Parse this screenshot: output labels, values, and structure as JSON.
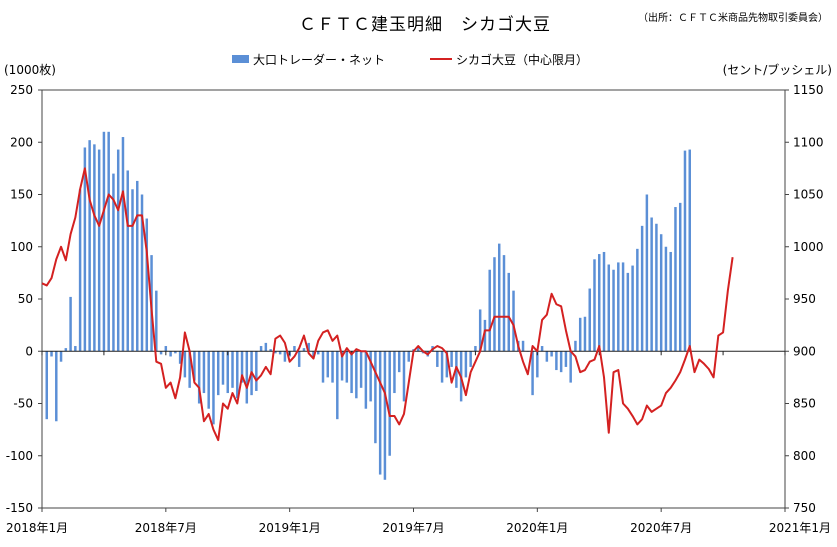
{
  "chart_data": {
    "type": "bar+line",
    "title": "ＣＦＴＣ建玉明細　シカゴ大豆",
    "source": "（出所：ＣＦＴＣ米商品先物取引委員会）",
    "legend": {
      "bar_label": "大口トレーダー・ネット",
      "line_label": "シカゴ大豆（中心限月）",
      "placement": "top-center"
    },
    "left_axis": {
      "label": "(1000枚)",
      "min": -150,
      "max": 250,
      "step": 50,
      "ticks": [
        "250",
        "200",
        "150",
        "100",
        "50",
        "0",
        "-50",
        "-100",
        "-150"
      ]
    },
    "right_axis": {
      "label": "(セント/ブッシェル)",
      "min": 750,
      "max": 1150,
      "step": 50,
      "ticks": [
        "1150",
        "1100",
        "1050",
        "1000",
        "950",
        "900",
        "850",
        "800",
        "750"
      ]
    },
    "x_axis": {
      "start": "2018-01",
      "end": "2021-01",
      "unit": "weeks",
      "total_weeks": 156,
      "tick_labels": [
        "2018年1月",
        "2018年7月",
        "2019年1月",
        "2019年7月",
        "2020年1月",
        "2020年7月",
        "2021年1月"
      ]
    },
    "bar_color": "#5b8fd6",
    "line_color": "#d42121",
    "bar_series": {
      "name": "大口トレーダー・ネット",
      "unit": "1000枚",
      "start_week": 1,
      "values": [
        -65,
        -5,
        -67,
        -10,
        3,
        52,
        5,
        155,
        195,
        202,
        198,
        193,
        210,
        210,
        170,
        193,
        205,
        173,
        155,
        163,
        150,
        127,
        92,
        58,
        -3,
        5,
        -5,
        -2,
        -12,
        -25,
        -35,
        -28,
        -50,
        -40,
        -55,
        -70,
        -42,
        -32,
        -40,
        -35,
        -45,
        -30,
        -50,
        -42,
        -38,
        5,
        8,
        2,
        -2,
        -3,
        -10,
        -5,
        5,
        -15,
        3,
        8,
        -5,
        -3,
        -30,
        -25,
        -30,
        -65,
        -28,
        -30,
        -40,
        -45,
        -35,
        -55,
        -48,
        -88,
        -118,
        -123,
        -100,
        -40,
        -20,
        -48,
        -10,
        2,
        5,
        -2,
        -5,
        5,
        -15,
        -30,
        -25,
        -15,
        -35,
        -48,
        -25,
        -15,
        5,
        40,
        30,
        78,
        90,
        103,
        92,
        75,
        58,
        10,
        10,
        0,
        -42,
        -25,
        5,
        -10,
        -5,
        -18,
        -20,
        -15,
        -30,
        10,
        32,
        33,
        60,
        88,
        93,
        95,
        83,
        78,
        85,
        85,
        75,
        82,
        98,
        120,
        150,
        128,
        122,
        112,
        100,
        95,
        138,
        142,
        192,
        193
      ]
    },
    "line_series": {
      "name": "シカゴ大豆（中心限月）",
      "unit": "セント/ブッシェル",
      "start_week": 0,
      "values": [
        965,
        963,
        970,
        988,
        1000,
        987,
        1012,
        1028,
        1055,
        1075,
        1045,
        1030,
        1020,
        1035,
        1050,
        1045,
        1035,
        1053,
        1020,
        1020,
        1030,
        1030,
        995,
        940,
        890,
        888,
        865,
        870,
        855,
        875,
        918,
        900,
        870,
        865,
        833,
        840,
        825,
        815,
        850,
        845,
        860,
        850,
        877,
        865,
        880,
        872,
        877,
        885,
        878,
        912,
        915,
        908,
        890,
        895,
        903,
        915,
        898,
        893,
        910,
        918,
        920,
        910,
        915,
        895,
        903,
        897,
        902,
        900,
        900,
        890,
        880,
        870,
        860,
        838,
        838,
        830,
        840,
        870,
        900,
        905,
        900,
        897,
        902,
        905,
        903,
        898,
        870,
        885,
        875,
        858,
        880,
        890,
        900,
        920,
        920,
        933,
        933,
        933,
        933,
        925,
        905,
        890,
        878,
        905,
        900,
        930,
        935,
        955,
        945,
        943,
        920,
        900,
        895,
        880,
        882,
        890,
        892,
        905,
        875,
        822,
        880,
        882,
        850,
        845,
        838,
        830,
        835,
        848,
        842,
        845,
        848,
        860,
        865,
        872,
        880,
        892,
        905,
        880,
        892,
        888,
        883,
        875,
        915,
        918,
        958,
        990
      ]
    }
  }
}
